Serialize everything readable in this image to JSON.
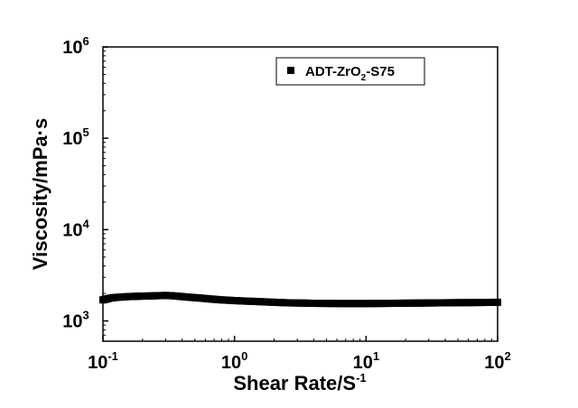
{
  "chart_data": {
    "type": "scatter",
    "xscale": "log",
    "yscale": "log",
    "xlim": [
      0.1,
      100
    ],
    "ylim": [
      600,
      1000000
    ],
    "xlabel": "Shear Rate/S-1",
    "xlabel_main": "Shear Rate/S",
    "xlabel_sup": "-1",
    "ylabel": "Viscosity/mPa·s",
    "x_ticks": [
      {
        "base": "10",
        "exp": "-1",
        "value": 0.1
      },
      {
        "base": "10",
        "exp": "0",
        "value": 1
      },
      {
        "base": "10",
        "exp": "1",
        "value": 10
      },
      {
        "base": "10",
        "exp": "2",
        "value": 100
      }
    ],
    "y_ticks": [
      {
        "base": "10",
        "exp": "3",
        "value": 1000
      },
      {
        "base": "10",
        "exp": "4",
        "value": 10000
      },
      {
        "base": "10",
        "exp": "5",
        "value": 100000
      },
      {
        "base": "10",
        "exp": "6",
        "value": 1000000
      }
    ],
    "legend": {
      "placement": "top-right",
      "label": "ADT-ZrO2-S75",
      "label_pre": "ADT-ZrO",
      "label_sub": "2",
      "label_post": "-S75"
    },
    "series": [
      {
        "name": "ADT-ZrO2-S75",
        "marker": "square",
        "color": "#000000",
        "x": [
          0.1,
          0.11,
          0.12,
          0.14,
          0.16,
          0.18,
          0.2,
          0.23,
          0.26,
          0.3,
          0.33,
          0.38,
          0.45,
          0.55,
          0.65,
          0.8,
          1.0,
          1.2,
          1.5,
          2.0,
          2.5,
          3.2,
          4.0,
          5.0,
          6.5,
          8.0,
          10,
          13,
          16,
          20,
          25,
          32,
          40,
          50,
          63,
          80,
          100
        ],
        "y": [
          1700,
          1760,
          1800,
          1830,
          1850,
          1860,
          1870,
          1880,
          1890,
          1900,
          1890,
          1860,
          1820,
          1780,
          1740,
          1700,
          1670,
          1650,
          1630,
          1600,
          1580,
          1570,
          1560,
          1555,
          1550,
          1550,
          1550,
          1555,
          1560,
          1565,
          1570,
          1575,
          1580,
          1585,
          1590,
          1595,
          1600
        ]
      }
    ]
  }
}
